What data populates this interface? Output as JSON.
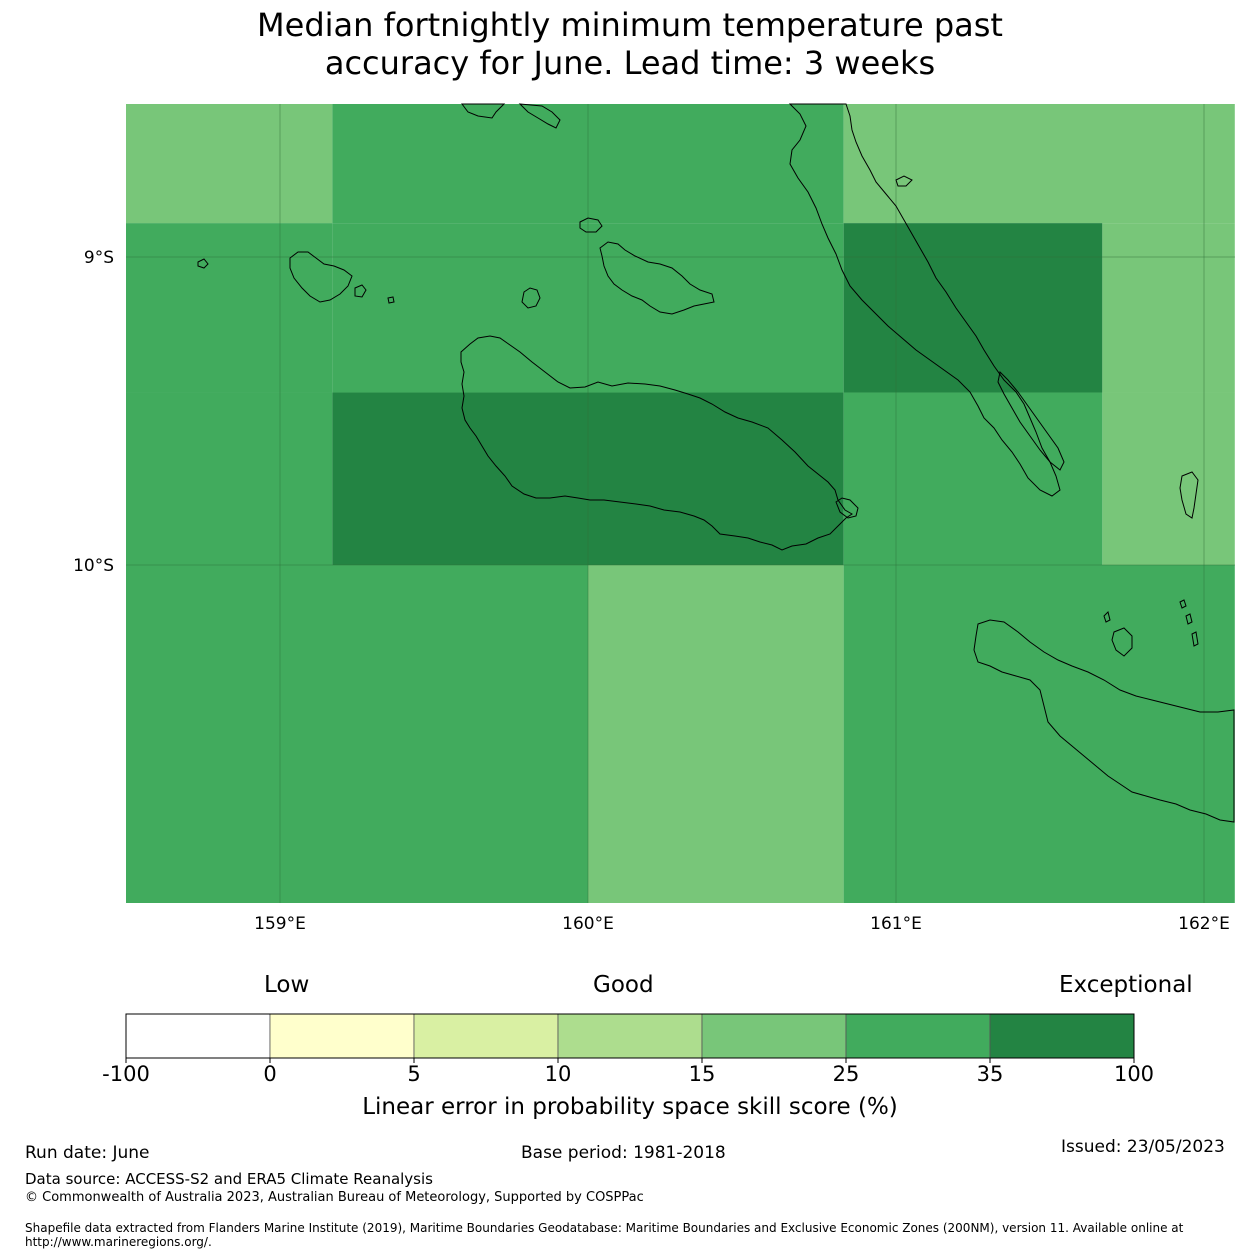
{
  "title": {
    "line1": "Median fortnightly minimum temperature past",
    "line2": "accuracy for June. Lead time: 3 weeks"
  },
  "map": {
    "lat_labels": [
      "9°S",
      "10°S"
    ],
    "lon_labels": [
      "159°E",
      "160°E",
      "161°E",
      "162°E"
    ],
    "lon_range": [
      158.5,
      162.1
    ],
    "lat_range": [
      -8.5,
      -11.1
    ],
    "grid_cells": [
      {
        "lon": [
          158.5,
          159.17
        ],
        "lat": [
          -8.5,
          -8.89
        ],
        "class": "15-25"
      },
      {
        "lon": [
          159.17,
          160.83
        ],
        "lat": [
          -8.5,
          -8.89
        ],
        "class": "25-35"
      },
      {
        "lon": [
          160.83,
          162.1
        ],
        "lat": [
          -8.5,
          -8.89
        ],
        "class": "15-25"
      },
      {
        "lon": [
          158.5,
          159.17
        ],
        "lat": [
          -8.89,
          -9.44
        ],
        "class": "25-35"
      },
      {
        "lon": [
          159.17,
          160.83
        ],
        "lat": [
          -8.89,
          -9.44
        ],
        "class": "25-35"
      },
      {
        "lon": [
          160.83,
          161.67
        ],
        "lat": [
          -8.89,
          -9.44
        ],
        "class": "35-100"
      },
      {
        "lon": [
          161.67,
          162.1
        ],
        "lat": [
          -8.89,
          -9.44
        ],
        "class": "15-25"
      },
      {
        "lon": [
          158.5,
          159.17
        ],
        "lat": [
          -9.44,
          -10.0
        ],
        "class": "25-35"
      },
      {
        "lon": [
          159.17,
          160.83
        ],
        "lat": [
          -9.44,
          -10.0
        ],
        "class": "35-100"
      },
      {
        "lon": [
          160.83,
          161.67
        ],
        "lat": [
          -9.44,
          -10.0
        ],
        "class": "25-35"
      },
      {
        "lon": [
          161.67,
          162.1
        ],
        "lat": [
          -9.44,
          -10.0
        ],
        "class": "15-25"
      },
      {
        "lon": [
          158.5,
          160.0
        ],
        "lat": [
          -10.0,
          -11.1
        ],
        "class": "25-35"
      },
      {
        "lon": [
          160.0,
          160.83
        ],
        "lat": [
          -10.0,
          -11.1
        ],
        "class": "15-25"
      },
      {
        "lon": [
          160.83,
          162.1
        ],
        "lat": [
          -10.0,
          -11.1
        ],
        "class": "25-35"
      }
    ]
  },
  "legend": {
    "categories": [
      "Low",
      "Good",
      "Exceptional"
    ],
    "ticks": [
      "-100",
      "0",
      "5",
      "10",
      "15",
      "25",
      "35",
      "100"
    ],
    "bins": [
      {
        "range": "-100-0",
        "color": "#ffffff"
      },
      {
        "range": "0-5",
        "color": "#ffffcc"
      },
      {
        "range": "5-10",
        "color": "#d9f0a3"
      },
      {
        "range": "10-15",
        "color": "#addd8e"
      },
      {
        "range": "15-25",
        "color": "#78c679"
      },
      {
        "range": "25-35",
        "color": "#41ab5d"
      },
      {
        "range": "35-100",
        "color": "#238443"
      }
    ],
    "label": "Linear error in probability space skill score (%)"
  },
  "footer": {
    "run_date": "Run date: June",
    "base_period": "Base period: 1981-2018",
    "issued": "Issued: 23/05/2023",
    "data_source": "Data source: ACCESS-S2 and ERA5 Climate Reanalysis",
    "copyright": "© Commonwealth of Australia 2023, Australian Bureau of Meteorology, Supported by COSPPac",
    "shapefile_line1": "Shapefile data extracted from Flanders Marine Institute (2019), Maritime Boundaries Geodatabase: Maritime Boundaries and Exclusive Economic Zones (200NM), version 11. Available online at",
    "shapefile_line2": "http://www.marineregions.org/."
  }
}
